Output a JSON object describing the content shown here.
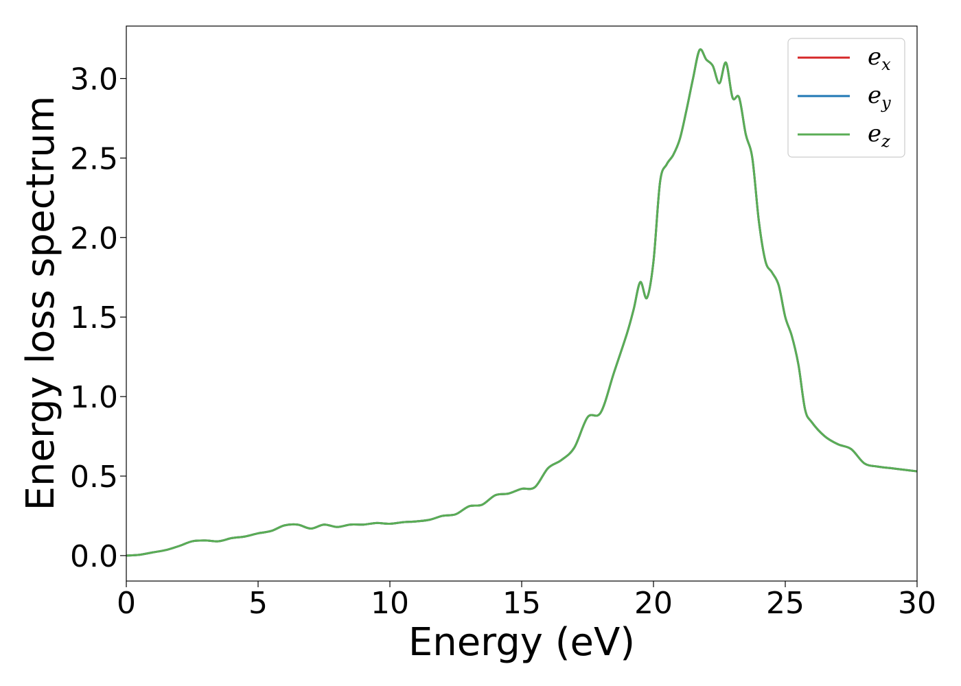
{
  "chart_data": {
    "type": "line",
    "xlabel": "Energy (eV)",
    "ylabel": "Energy loss spectrum",
    "xlim": [
      0,
      30
    ],
    "ylim": [
      -0.16,
      3.33
    ],
    "x_ticks": [
      0,
      5,
      10,
      15,
      20,
      25,
      30
    ],
    "y_ticks": [
      "0.0",
      "0.5",
      "1.0",
      "1.5",
      "2.0",
      "2.5",
      "3.0"
    ],
    "grid": false,
    "legend_position": "top-right",
    "series": [
      {
        "name": "e",
        "subscript": "x",
        "color": "#d62728"
      },
      {
        "name": "e",
        "subscript": "y",
        "color": "#1f77b4"
      },
      {
        "name": "e",
        "subscript": "z",
        "color": "#5aad55"
      }
    ],
    "x": [
      0,
      0.5,
      1,
      1.5,
      2,
      2.5,
      3,
      3.5,
      4,
      4.5,
      5,
      5.5,
      6,
      6.5,
      7,
      7.5,
      8,
      8.5,
      9,
      9.5,
      10,
      10.5,
      11,
      11.5,
      12,
      12.5,
      13,
      13.5,
      14,
      14.5,
      15,
      15.5,
      16,
      16.5,
      17,
      17.5,
      18,
      18.5,
      19,
      19.25,
      19.5,
      19.75,
      20,
      20.25,
      20.5,
      20.75,
      21,
      21.25,
      21.5,
      21.75,
      22,
      22.25,
      22.5,
      22.75,
      23,
      23.25,
      23.5,
      23.75,
      24,
      24.25,
      24.5,
      24.75,
      25,
      25.25,
      25.5,
      25.75,
      26,
      26.5,
      27,
      27.5,
      28,
      28.5,
      29,
      29.5,
      30
    ],
    "values": [
      0.0,
      0.005,
      0.02,
      0.035,
      0.06,
      0.09,
      0.095,
      0.09,
      0.11,
      0.12,
      0.14,
      0.155,
      0.19,
      0.195,
      0.17,
      0.195,
      0.18,
      0.195,
      0.195,
      0.205,
      0.2,
      0.21,
      0.215,
      0.225,
      0.25,
      0.26,
      0.31,
      0.32,
      0.38,
      0.39,
      0.42,
      0.43,
      0.55,
      0.6,
      0.68,
      0.87,
      0.9,
      1.15,
      1.4,
      1.55,
      1.72,
      1.62,
      1.85,
      2.35,
      2.46,
      2.52,
      2.62,
      2.8,
      3.0,
      3.18,
      3.12,
      3.08,
      2.97,
      3.1,
      2.88,
      2.88,
      2.65,
      2.5,
      2.1,
      1.85,
      1.78,
      1.7,
      1.5,
      1.38,
      1.2,
      0.92,
      0.84,
      0.75,
      0.7,
      0.67,
      0.58,
      0.56,
      0.55,
      0.54,
      0.53
    ]
  }
}
